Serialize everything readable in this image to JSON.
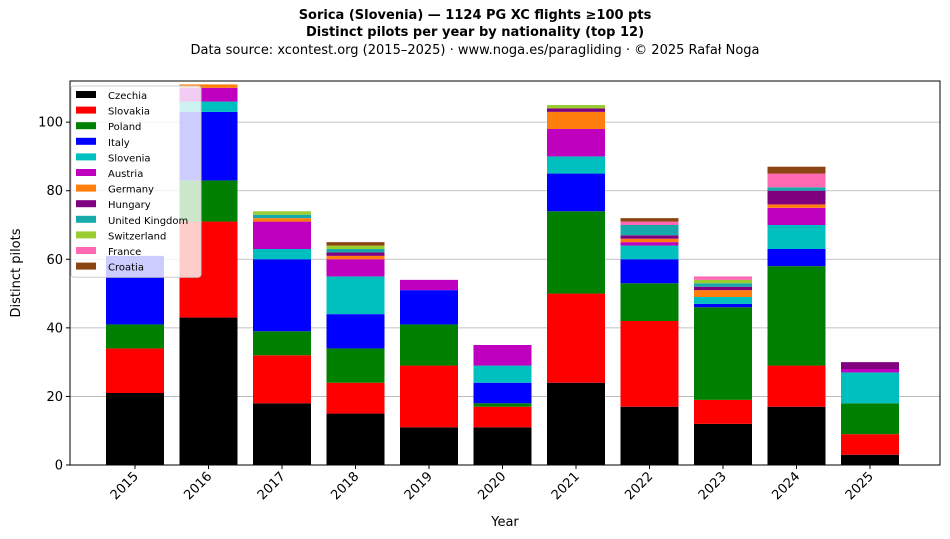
{
  "header": {
    "title": "Sorica (Slovenia)  —  1124 PG XC flights ≥100 pts",
    "subtitle": "Distinct pilots per year by nationality (top 12)",
    "source": "Data source: xcontest.org (2015–2025)  ·  www.noga.es/paragliding  ·  © 2025 Rafał Noga"
  },
  "chart_data": {
    "type": "bar",
    "stacked": true,
    "title": "Sorica (Slovenia)  —  1124 PG XC flights ≥100 pts",
    "subtitle": "Distinct pilots per year by nationality (top 12)",
    "xlabel": "Year",
    "ylabel": "Distinct pilots",
    "ylim": [
      0,
      112
    ],
    "yticks": [
      0,
      20,
      40,
      60,
      80,
      100
    ],
    "grid": "y",
    "legend_position": "top-left",
    "categories": [
      "2015",
      "2016",
      "2017",
      "2018",
      "2019",
      "2020",
      "2021",
      "2022",
      "2023",
      "2024",
      "2025"
    ],
    "series": [
      {
        "name": "Czechia",
        "color": "#000000",
        "values": [
          21,
          43,
          18,
          15,
          11,
          11,
          24,
          17,
          12,
          17,
          3
        ]
      },
      {
        "name": "Slovakia",
        "color": "#ff0000",
        "values": [
          13,
          28,
          14,
          9,
          18,
          6,
          26,
          25,
          7,
          12,
          6
        ]
      },
      {
        "name": "Poland",
        "color": "#008000",
        "values": [
          7,
          12,
          7,
          10,
          12,
          1,
          24,
          11,
          27,
          29,
          9
        ]
      },
      {
        "name": "Italy",
        "color": "#0000ff",
        "values": [
          20,
          20,
          21,
          10,
          10,
          6,
          11,
          7,
          1,
          5,
          0
        ]
      },
      {
        "name": "Slovenia",
        "color": "#00bfbf",
        "values": [
          0,
          3,
          3,
          11,
          0,
          5,
          5,
          4,
          2,
          7,
          9
        ]
      },
      {
        "name": "Austria",
        "color": "#bf00bf",
        "values": [
          0,
          4,
          8,
          5,
          3,
          6,
          8,
          1,
          0,
          5,
          1
        ]
      },
      {
        "name": "Germany",
        "color": "#ff7f0e",
        "values": [
          0,
          1,
          1,
          1,
          0,
          0,
          5,
          1,
          2,
          1,
          0
        ]
      },
      {
        "name": "Hungary",
        "color": "#800080",
        "values": [
          0,
          0,
          0,
          1,
          0,
          0,
          1,
          1,
          1,
          4,
          2
        ]
      },
      {
        "name": "United Kingdom",
        "color": "#17aaaa",
        "values": [
          0,
          0,
          1,
          1,
          0,
          0,
          0,
          3,
          1,
          1,
          0
        ]
      },
      {
        "name": "Switzerland",
        "color": "#9acd32",
        "values": [
          0,
          0,
          1,
          1,
          0,
          0,
          1,
          0,
          1,
          0,
          0
        ]
      },
      {
        "name": "France",
        "color": "#ff69b4",
        "values": [
          0,
          0,
          0,
          0,
          0,
          0,
          0,
          1,
          1,
          4,
          0
        ]
      },
      {
        "name": "Croatia",
        "color": "#8b4513",
        "values": [
          0,
          0,
          0,
          1,
          0,
          0,
          0,
          1,
          0,
          2,
          0
        ]
      }
    ]
  }
}
